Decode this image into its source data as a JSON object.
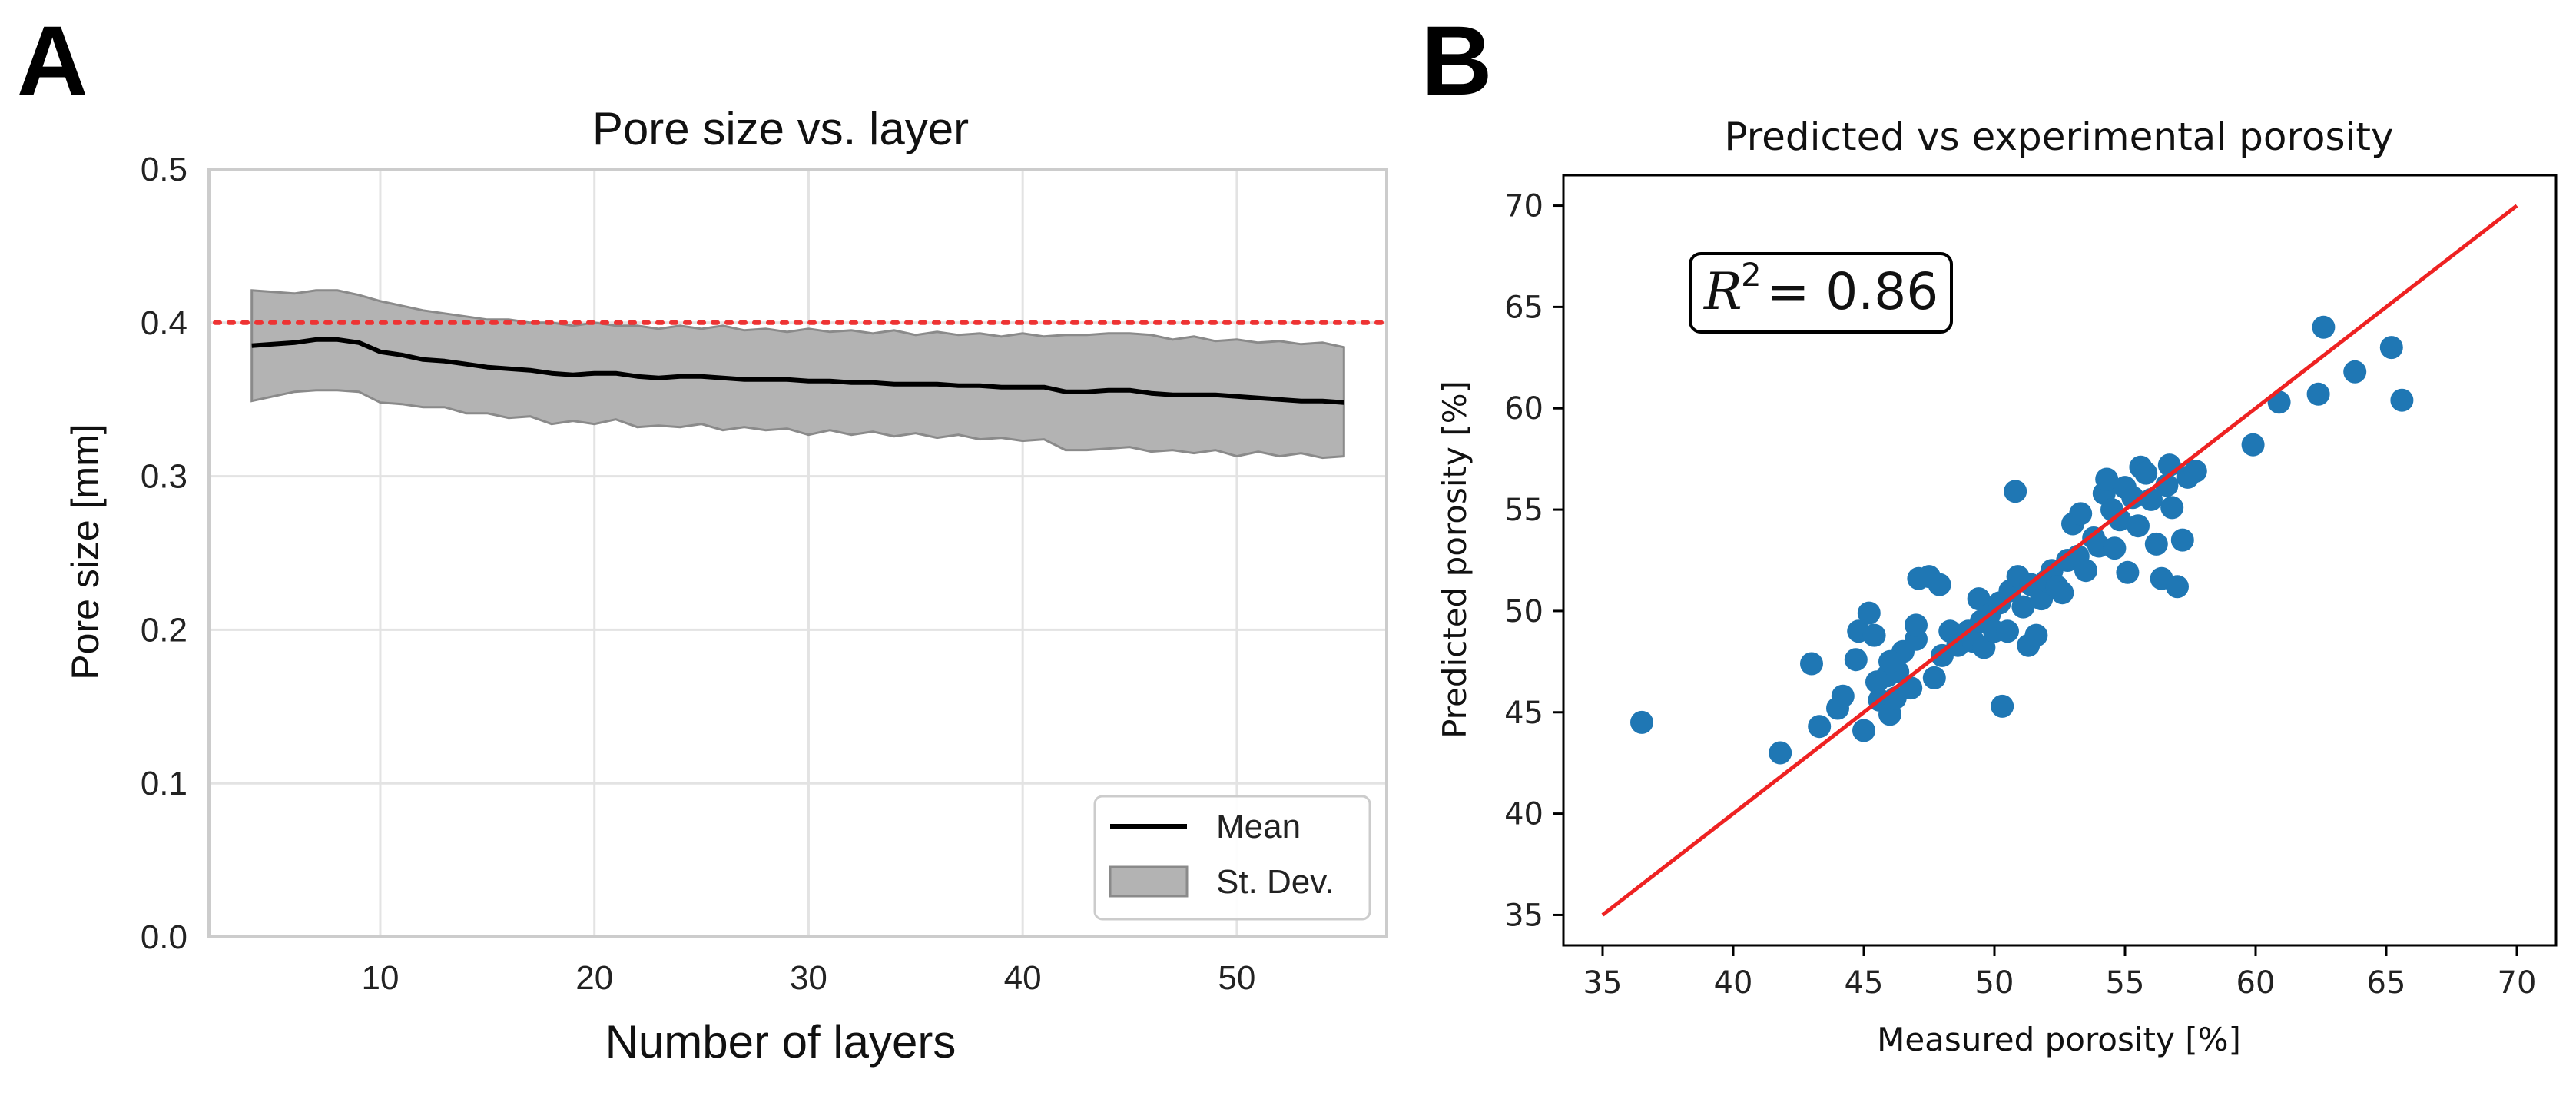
{
  "panel_labels": {
    "a": "A",
    "b": "B"
  },
  "chart_data": [
    {
      "type": "line",
      "title": "Pore size vs. layer",
      "xlabel": "Number of layers",
      "ylabel": "Pore size [mm]",
      "xlim": [
        2,
        57
      ],
      "ylim": [
        0.0,
        0.5
      ],
      "xticks": [
        10,
        20,
        30,
        40,
        50
      ],
      "yticks": [
        0.0,
        0.1,
        0.2,
        0.3,
        0.4,
        0.5
      ],
      "xtick_labels": [
        "10",
        "20",
        "30",
        "40",
        "50"
      ],
      "ytick_labels": [
        "0.0",
        "0.1",
        "0.2",
        "0.3",
        "0.4",
        "0.5"
      ],
      "grid": true,
      "x": [
        4,
        5,
        6,
        7,
        8,
        9,
        10,
        11,
        12,
        13,
        14,
        15,
        16,
        17,
        18,
        19,
        20,
        21,
        22,
        23,
        24,
        25,
        26,
        27,
        28,
        29,
        30,
        31,
        32,
        33,
        34,
        35,
        36,
        37,
        38,
        39,
        40,
        41,
        42,
        43,
        44,
        45,
        46,
        47,
        48,
        49,
        50,
        51,
        52,
        53,
        54,
        55
      ],
      "series": [
        {
          "name": "Mean",
          "color": "#000000",
          "values": [
            0.385,
            0.386,
            0.387,
            0.389,
            0.389,
            0.387,
            0.381,
            0.379,
            0.376,
            0.375,
            0.373,
            0.371,
            0.37,
            0.369,
            0.367,
            0.366,
            0.367,
            0.367,
            0.365,
            0.364,
            0.365,
            0.365,
            0.364,
            0.363,
            0.363,
            0.363,
            0.362,
            0.362,
            0.361,
            0.361,
            0.36,
            0.36,
            0.36,
            0.359,
            0.359,
            0.358,
            0.358,
            0.358,
            0.355,
            0.355,
            0.356,
            0.356,
            0.354,
            0.353,
            0.353,
            0.353,
            0.352,
            0.351,
            0.35,
            0.349,
            0.349,
            0.348
          ]
        },
        {
          "name": "St. Dev.",
          "type": "band",
          "color": "#b3b3b3",
          "lower": [
            0.349,
            0.352,
            0.355,
            0.356,
            0.356,
            0.355,
            0.348,
            0.347,
            0.345,
            0.345,
            0.341,
            0.341,
            0.338,
            0.339,
            0.334,
            0.336,
            0.334,
            0.337,
            0.332,
            0.333,
            0.332,
            0.334,
            0.33,
            0.332,
            0.33,
            0.331,
            0.327,
            0.33,
            0.327,
            0.329,
            0.326,
            0.328,
            0.325,
            0.327,
            0.324,
            0.325,
            0.323,
            0.324,
            0.317,
            0.317,
            0.318,
            0.319,
            0.316,
            0.317,
            0.315,
            0.317,
            0.313,
            0.316,
            0.313,
            0.315,
            0.312,
            0.313
          ],
          "upper": [
            0.421,
            0.42,
            0.419,
            0.421,
            0.421,
            0.418,
            0.414,
            0.411,
            0.408,
            0.406,
            0.404,
            0.402,
            0.402,
            0.4,
            0.4,
            0.398,
            0.4,
            0.398,
            0.398,
            0.396,
            0.398,
            0.396,
            0.398,
            0.395,
            0.396,
            0.394,
            0.396,
            0.394,
            0.395,
            0.393,
            0.395,
            0.392,
            0.394,
            0.392,
            0.393,
            0.391,
            0.393,
            0.391,
            0.392,
            0.392,
            0.393,
            0.393,
            0.392,
            0.389,
            0.391,
            0.388,
            0.389,
            0.387,
            0.388,
            0.386,
            0.387,
            0.384
          ]
        }
      ],
      "reference_line": {
        "y": 0.4,
        "color": "#ee3333",
        "style": "dotted"
      },
      "legend": {
        "position": "bottom-right",
        "entries": [
          "Mean",
          "St. Dev."
        ]
      }
    },
    {
      "type": "scatter",
      "title": "Predicted vs experimental porosity",
      "xlabel": "Measured porosity [%]",
      "ylabel": "Predicted porosity [%]",
      "xlim": [
        33.5,
        71.5
      ],
      "ylim": [
        33.5,
        71.5
      ],
      "xticks": [
        35,
        40,
        45,
        50,
        55,
        60,
        65,
        70
      ],
      "yticks": [
        35,
        40,
        45,
        50,
        55,
        60,
        65,
        70
      ],
      "xtick_labels": [
        "35",
        "40",
        "45",
        "50",
        "55",
        "60",
        "65",
        "70"
      ],
      "ytick_labels": [
        "35",
        "40",
        "45",
        "50",
        "55",
        "60",
        "65",
        "70"
      ],
      "grid": false,
      "point_color": "#1f77b4",
      "fit_line": {
        "x": [
          35,
          70
        ],
        "y": [
          35,
          70
        ],
        "color": "#ee2222"
      },
      "annotation": {
        "variable": "R",
        "exponent": "2",
        "value": "= 0.86"
      },
      "points": [
        [
          36.5,
          44.5
        ],
        [
          41.8,
          43.0
        ],
        [
          43.0,
          47.4
        ],
        [
          43.3,
          44.3
        ],
        [
          44.0,
          45.2
        ],
        [
          44.2,
          45.8
        ],
        [
          44.7,
          47.6
        ],
        [
          44.8,
          49.0
        ],
        [
          45.0,
          44.1
        ],
        [
          45.2,
          49.9
        ],
        [
          45.4,
          48.8
        ],
        [
          45.5,
          46.5
        ],
        [
          45.6,
          45.6
        ],
        [
          45.9,
          46.8
        ],
        [
          46.0,
          44.9
        ],
        [
          46.2,
          45.7
        ],
        [
          46.3,
          47.0
        ],
        [
          46.5,
          48.0
        ],
        [
          46.0,
          47.5
        ],
        [
          46.8,
          46.2
        ],
        [
          47.0,
          48.6
        ],
        [
          47.0,
          49.3
        ],
        [
          47.1,
          51.6
        ],
        [
          47.5,
          51.7
        ],
        [
          47.7,
          46.7
        ],
        [
          47.9,
          51.3
        ],
        [
          48.0,
          47.8
        ],
        [
          48.3,
          49.0
        ],
        [
          48.6,
          48.3
        ],
        [
          49.0,
          49.0
        ],
        [
          49.2,
          48.5
        ],
        [
          49.4,
          50.6
        ],
        [
          49.5,
          49.5
        ],
        [
          49.6,
          48.2
        ],
        [
          49.8,
          49.8
        ],
        [
          50.0,
          49.0
        ],
        [
          50.2,
          50.4
        ],
        [
          50.3,
          45.3
        ],
        [
          50.5,
          49.0
        ],
        [
          50.6,
          51.0
        ],
        [
          50.8,
          55.9
        ],
        [
          50.9,
          51.7
        ],
        [
          51.1,
          50.2
        ],
        [
          51.3,
          48.3
        ],
        [
          51.4,
          51.3
        ],
        [
          51.6,
          48.8
        ],
        [
          51.8,
          50.6
        ],
        [
          52.0,
          51.5
        ],
        [
          52.2,
          52.0
        ],
        [
          52.4,
          51.2
        ],
        [
          52.6,
          50.9
        ],
        [
          52.8,
          52.5
        ],
        [
          53.0,
          54.3
        ],
        [
          53.2,
          52.7
        ],
        [
          53.3,
          54.8
        ],
        [
          53.5,
          52.0
        ],
        [
          53.8,
          53.6
        ],
        [
          54.0,
          53.2
        ],
        [
          54.2,
          55.8
        ],
        [
          54.3,
          56.5
        ],
        [
          54.5,
          55.0
        ],
        [
          54.6,
          53.1
        ],
        [
          54.8,
          54.5
        ],
        [
          55.0,
          56.1
        ],
        [
          55.1,
          51.9
        ],
        [
          55.3,
          55.6
        ],
        [
          55.5,
          54.2
        ],
        [
          55.6,
          57.1
        ],
        [
          55.8,
          56.8
        ],
        [
          56.0,
          55.5
        ],
        [
          56.2,
          53.3
        ],
        [
          56.4,
          51.6
        ],
        [
          56.6,
          56.2
        ],
        [
          56.7,
          57.2
        ],
        [
          56.8,
          55.1
        ],
        [
          57.0,
          51.2
        ],
        [
          57.2,
          53.5
        ],
        [
          57.4,
          56.6
        ],
        [
          57.7,
          56.9
        ],
        [
          59.9,
          58.2
        ],
        [
          60.9,
          60.3
        ],
        [
          62.4,
          60.7
        ],
        [
          62.6,
          64.0
        ],
        [
          63.8,
          61.8
        ],
        [
          65.2,
          63.0
        ],
        [
          65.6,
          60.4
        ]
      ]
    }
  ]
}
